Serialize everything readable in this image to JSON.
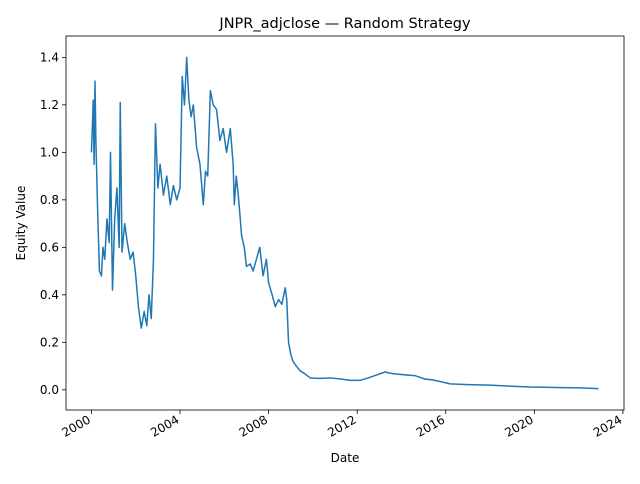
{
  "chart_data": {
    "type": "line",
    "title": "JNPR_adjclose — Random Strategy",
    "x_label": "Date",
    "y_label": "Equity Value",
    "x": [
      2000.0,
      2000.08,
      2000.12,
      2000.16,
      2000.2,
      2000.28,
      2000.36,
      2000.45,
      2000.52,
      2000.6,
      2000.7,
      2000.8,
      2000.86,
      2000.95,
      2001.05,
      2001.15,
      2001.25,
      2001.3,
      2001.38,
      2001.5,
      2001.62,
      2001.75,
      2001.88,
      2002.0,
      2002.12,
      2002.25,
      2002.38,
      2002.5,
      2002.6,
      2002.7,
      2002.8,
      2002.89,
      2003.0,
      2003.1,
      2003.25,
      2003.4,
      2003.56,
      2003.7,
      2003.85,
      2004.0,
      2004.1,
      2004.2,
      2004.3,
      2004.4,
      2004.5,
      2004.6,
      2004.75,
      2004.9,
      2005.05,
      2005.15,
      2005.25,
      2005.37,
      2005.5,
      2005.65,
      2005.8,
      2005.95,
      2006.1,
      2006.27,
      2006.4,
      2006.45,
      2006.54,
      2006.65,
      2006.78,
      2006.9,
      2007.0,
      2007.17,
      2007.3,
      2007.45,
      2007.6,
      2007.75,
      2007.9,
      2008.0,
      2008.16,
      2008.3,
      2008.45,
      2008.6,
      2008.75,
      2008.82,
      2008.9,
      2009.0,
      2009.1,
      2009.25,
      2009.43,
      2009.6,
      2009.88,
      2010.3,
      2010.8,
      2011.3,
      2011.7,
      2012.13,
      2012.5,
      2012.8,
      2013.26,
      2013.6,
      2013.94,
      2014.3,
      2014.6,
      2015.07,
      2015.4,
      2015.74,
      2016.2,
      2017.0,
      2018.0,
      2019.0,
      2019.8,
      2021.0,
      2022.06,
      2022.9
    ],
    "series": [
      {
        "name": "Equity Value",
        "color": "#1f77b4",
        "values": [
          1.0,
          1.22,
          0.95,
          1.3,
          1.05,
          0.75,
          0.5,
          0.48,
          0.6,
          0.55,
          0.72,
          0.62,
          1.0,
          0.42,
          0.72,
          0.85,
          0.6,
          1.21,
          0.58,
          0.7,
          0.62,
          0.55,
          0.58,
          0.48,
          0.35,
          0.26,
          0.33,
          0.27,
          0.4,
          0.3,
          0.55,
          1.12,
          0.85,
          0.95,
          0.82,
          0.9,
          0.78,
          0.86,
          0.8,
          0.85,
          1.32,
          1.2,
          1.4,
          1.22,
          1.15,
          1.2,
          1.02,
          0.95,
          0.78,
          0.92,
          0.9,
          1.26,
          1.2,
          1.18,
          1.05,
          1.1,
          1.0,
          1.1,
          0.95,
          0.78,
          0.9,
          0.8,
          0.65,
          0.6,
          0.52,
          0.53,
          0.5,
          0.55,
          0.6,
          0.48,
          0.55,
          0.45,
          0.4,
          0.35,
          0.38,
          0.36,
          0.43,
          0.38,
          0.2,
          0.15,
          0.12,
          0.1,
          0.08,
          0.07,
          0.05,
          0.048,
          0.05,
          0.045,
          0.04,
          0.04,
          0.05,
          0.06,
          0.075,
          0.068,
          0.065,
          0.062,
          0.06,
          0.045,
          0.042,
          0.035,
          0.025,
          0.022,
          0.02,
          0.015,
          0.012,
          0.01,
          0.008,
          0.005
        ]
      }
    ],
    "xlim": [
      1998.85,
      2024.05
    ],
    "ylim": [
      -0.085,
      1.49
    ],
    "xticks": [
      2000,
      2004,
      2008,
      2012,
      2016,
      2020,
      2024
    ],
    "yticks": [
      {
        "value": 0,
        "label": "0.0"
      },
      0.2,
      0.4,
      0.6,
      0.8,
      {
        "value": 1,
        "label": "1.0"
      },
      1.2,
      1.4
    ]
  }
}
